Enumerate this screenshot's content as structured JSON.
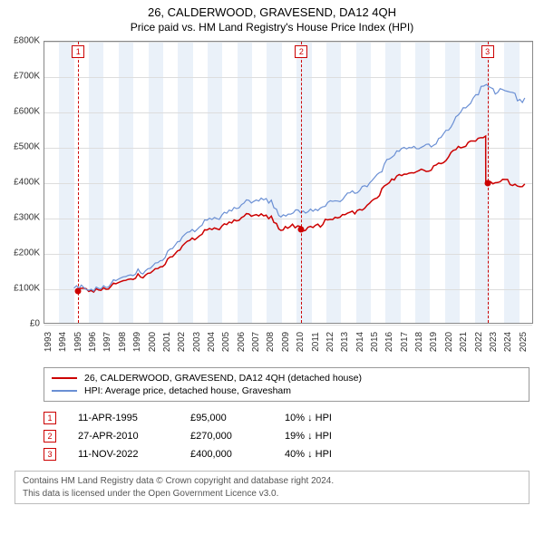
{
  "title": "26, CALDERWOOD, GRAVESEND, DA12 4QH",
  "subtitle": "Price paid vs. HM Land Registry's House Price Index (HPI)",
  "chart": {
    "type": "line",
    "background_color": "#ffffff",
    "plot_border_color": "#888888",
    "band_color": "#eaf1f9",
    "grid_color": "#dddddd",
    "x_axis": {
      "min": 1993,
      "max": 2026,
      "ticks": [
        1993,
        1994,
        1995,
        1996,
        1997,
        1998,
        1999,
        2000,
        2001,
        2002,
        2003,
        2004,
        2005,
        2006,
        2007,
        2008,
        2009,
        2010,
        2011,
        2012,
        2013,
        2014,
        2015,
        2016,
        2017,
        2018,
        2019,
        2020,
        2021,
        2022,
        2023,
        2024,
        2025
      ],
      "label_fontsize": 10,
      "label_rotation": -90
    },
    "y_axis": {
      "min": 0,
      "max": 800000,
      "tick_step": 100000,
      "tick_labels": [
        "£0",
        "£100K",
        "£200K",
        "£300K",
        "£400K",
        "£500K",
        "£600K",
        "£700K",
        "£800K"
      ],
      "label_fontsize": 10
    },
    "vertical_bands_every_other_year_start": 1994,
    "event_lines": {
      "color": "#cc0000",
      "dash": "4,3",
      "width": 1,
      "years": [
        1995.28,
        2010.32,
        2022.86
      ]
    },
    "markers": [
      {
        "n": "1",
        "year": 1995.28
      },
      {
        "n": "2",
        "year": 2010.32
      },
      {
        "n": "3",
        "year": 2022.86
      }
    ],
    "series": [
      {
        "id": "price_paid",
        "label": "26, CALDERWOOD, GRAVESEND, DA12 4QH (detached house)",
        "color": "#cc0000",
        "width": 1.5,
        "dots_color": "#cc0000",
        "dot_years": [
          1995.28,
          2010.32,
          2022.86
        ],
        "dot_values": [
          95000,
          270000,
          400000
        ],
        "points": [
          [
            1995.28,
            95000
          ],
          [
            1996,
            100000
          ],
          [
            1997,
            105000
          ],
          [
            1998,
            115000
          ],
          [
            1999,
            128000
          ],
          [
            2000,
            150000
          ],
          [
            2001,
            170000
          ],
          [
            2002,
            200000
          ],
          [
            2003,
            245000
          ],
          [
            2004,
            275000
          ],
          [
            2005,
            278000
          ],
          [
            2006,
            290000
          ],
          [
            2007,
            315000
          ],
          [
            2008,
            320000
          ],
          [
            2008.7,
            280000
          ],
          [
            2009,
            262000
          ],
          [
            2009.6,
            280000
          ],
          [
            2010.32,
            270000
          ],
          [
            2011,
            282000
          ],
          [
            2012,
            290000
          ],
          [
            2013,
            300000
          ],
          [
            2014,
            320000
          ],
          [
            2015,
            350000
          ],
          [
            2016,
            390000
          ],
          [
            2017,
            420000
          ],
          [
            2018,
            440000
          ],
          [
            2019,
            445000
          ],
          [
            2020,
            460000
          ],
          [
            2021,
            500000
          ],
          [
            2022,
            530000
          ],
          [
            2022.85,
            535000
          ],
          [
            2022.86,
            400000
          ],
          [
            2023.5,
            398000
          ],
          [
            2024,
            405000
          ],
          [
            2025,
            400000
          ],
          [
            2025.5,
            395000
          ]
        ]
      },
      {
        "id": "hpi",
        "label": "HPI: Average price, detached house, Gravesham",
        "color": "#6a8fd4",
        "width": 1.2,
        "points": [
          [
            1995,
            100000
          ],
          [
            1996,
            105000
          ],
          [
            1997,
            112000
          ],
          [
            1998,
            125000
          ],
          [
            1999,
            140000
          ],
          [
            2000,
            165000
          ],
          [
            2001,
            190000
          ],
          [
            2002,
            225000
          ],
          [
            2003,
            270000
          ],
          [
            2004,
            305000
          ],
          [
            2005,
            310000
          ],
          [
            2006,
            325000
          ],
          [
            2007,
            355000
          ],
          [
            2008,
            370000
          ],
          [
            2008.7,
            320000
          ],
          [
            2009,
            300000
          ],
          [
            2010,
            320000
          ],
          [
            2011,
            330000
          ],
          [
            2012,
            338000
          ],
          [
            2013,
            350000
          ],
          [
            2014,
            378000
          ],
          [
            2015,
            410000
          ],
          [
            2016,
            455000
          ],
          [
            2017,
            490000
          ],
          [
            2018,
            510000
          ],
          [
            2019,
            515000
          ],
          [
            2020,
            535000
          ],
          [
            2021,
            590000
          ],
          [
            2022,
            650000
          ],
          [
            2022.9,
            680000
          ],
          [
            2023.5,
            655000
          ],
          [
            2024,
            665000
          ],
          [
            2025,
            645000
          ],
          [
            2025.5,
            640000
          ]
        ]
      }
    ]
  },
  "legend": {
    "items": [
      {
        "color": "#cc0000",
        "label_ref": "chart.series.0.label"
      },
      {
        "color": "#6a8fd4",
        "label_ref": "chart.series.1.label"
      }
    ]
  },
  "transactions": [
    {
      "n": "1",
      "date": "11-APR-1995",
      "price": "£95,000",
      "delta": "10% ↓ HPI"
    },
    {
      "n": "2",
      "date": "27-APR-2010",
      "price": "£270,000",
      "delta": "19% ↓ HPI"
    },
    {
      "n": "3",
      "date": "11-NOV-2022",
      "price": "£400,000",
      "delta": "40% ↓ HPI"
    }
  ],
  "footer": {
    "line1": "Contains HM Land Registry data © Crown copyright and database right 2024.",
    "line2": "This data is licensed under the Open Government Licence v3.0."
  }
}
